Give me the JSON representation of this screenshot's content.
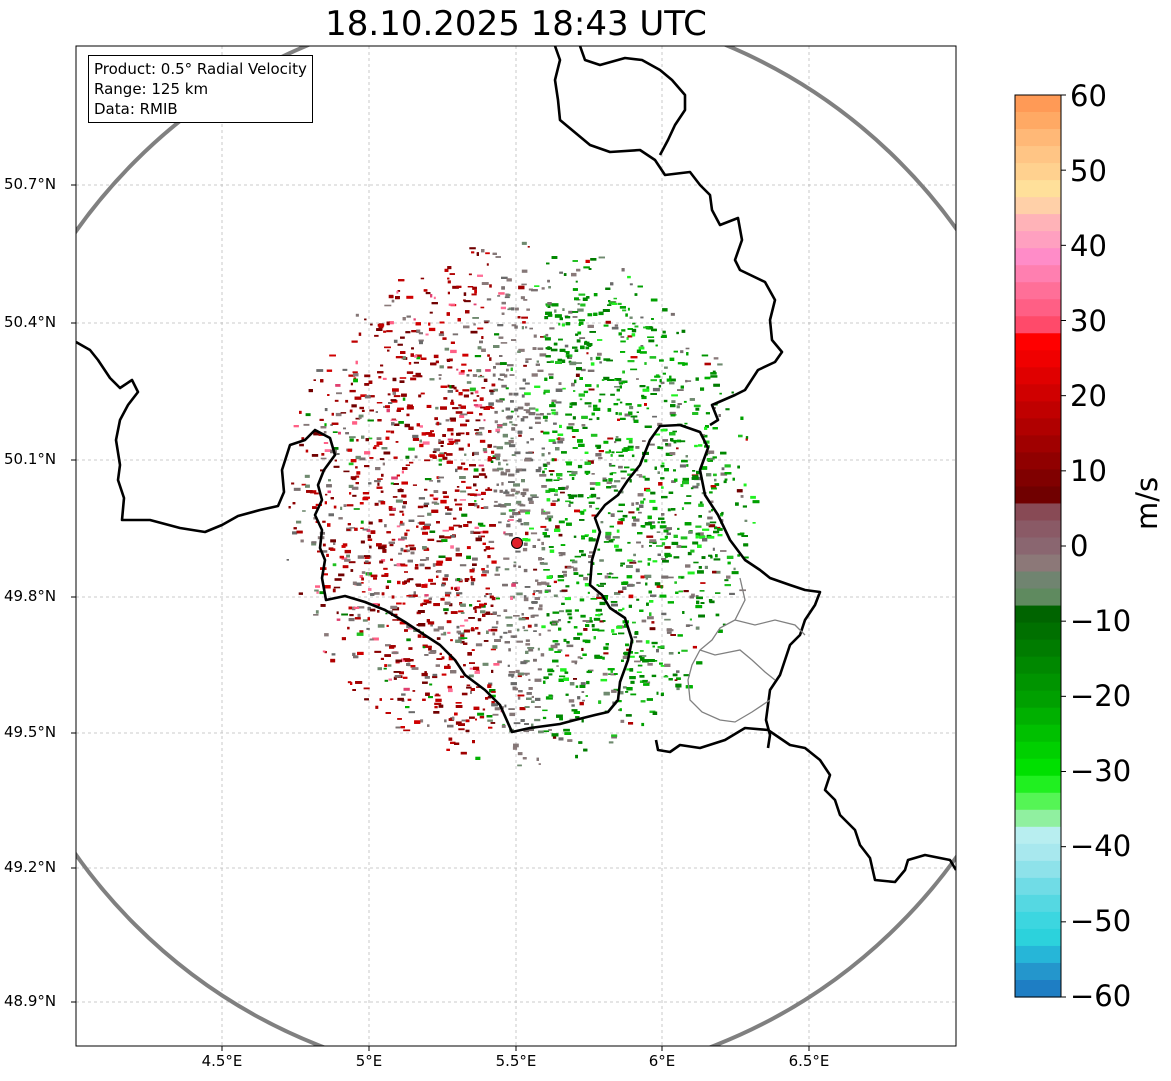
{
  "title": "18.10.2025 18:43 UTC",
  "info": {
    "product": "Product: 0.5° Radial Velocity",
    "range": "Range: 125 km",
    "data": "Data: RMIB"
  },
  "lat_labels": [
    "50.7°N",
    "50.4°N",
    "50.1°N",
    "49.8°N",
    "49.5°N",
    "49.2°N",
    "48.9°N"
  ],
  "lon_labels": [
    "4.5°E",
    "5°E",
    "5.5°E",
    "6°E",
    "6.5°E"
  ],
  "colorbar": {
    "unit": "m/s",
    "ticks": [
      "60",
      "50",
      "40",
      "30",
      "20",
      "10",
      "0",
      "−10",
      "−20",
      "−30",
      "−40",
      "−50",
      "−60"
    ]
  },
  "radar": {
    "site_lat": 49.914,
    "site_lon": 5.505,
    "range_km": 125
  },
  "colors": {
    "ring": "#808080",
    "border": "#000000",
    "site_marker": "#e0202a"
  },
  "colorbar_colors": [
    "#ff9a56",
    "#ffa964",
    "#ffb877",
    "#ffc585",
    "#ffd18f",
    "#ffe09a",
    "#ffd0a8",
    "#ffb3b8",
    "#ffa0c0",
    "#ff8cc8",
    "#ff7fb0",
    "#ff6f98",
    "#ff5f85",
    "#ff4a6a",
    "#ff0000",
    "#f00000",
    "#e00000",
    "#d00000",
    "#c00000",
    "#b00000",
    "#a00000",
    "#900000",
    "#800000",
    "#700000",
    "#884a55",
    "#8a5a66",
    "#8a6670",
    "#8c7878",
    "#708470",
    "#5f8a5f",
    "#006400",
    "#007000",
    "#007c00",
    "#008800",
    "#009400",
    "#00a000",
    "#00b000",
    "#00c000",
    "#00d000",
    "#00e000",
    "#20f020",
    "#55f555",
    "#90f0a0",
    "#b8eef0",
    "#a8e8ee",
    "#8ee2ea",
    "#70dce6",
    "#55d8e2",
    "#3cd6e0",
    "#2cd2dc",
    "#26b6d8",
    "#2496cc",
    "#1e7ec4"
  ]
}
